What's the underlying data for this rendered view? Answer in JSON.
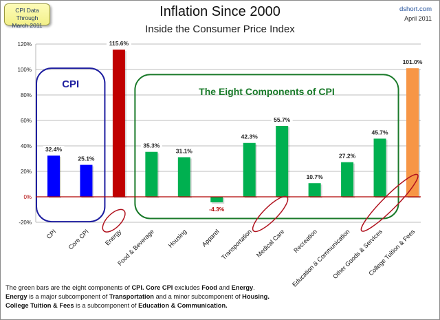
{
  "header": {
    "badge_line1": "CPI Data Through",
    "badge_line2": "March 2011",
    "title": "Inflation Since 2000",
    "subtitle": "Inside the Consumer Price Index",
    "site": "dshort.com",
    "date": "April 2011"
  },
  "chart_data": {
    "type": "bar",
    "title": "Inflation Since 2000",
    "subtitle": "Inside the Consumer Price Index",
    "xlabel": "",
    "ylabel": "",
    "ylim": [
      -20,
      120
    ],
    "yticks": [
      120,
      100,
      80,
      60,
      40,
      20,
      0,
      -20
    ],
    "ytick_labels": [
      "120%",
      "100%",
      "80%",
      "60%",
      "40%",
      "20%",
      "0%",
      "-20%"
    ],
    "grid": true,
    "categories": [
      "CPI",
      "Core CPI",
      "Energy",
      "Food & Beverage",
      "Housing",
      "Apparel",
      "Transportation",
      "Medical Care",
      "Recreation",
      "Education & Communication",
      "Other Goods & Services",
      "College Tuition & Fees"
    ],
    "values": [
      32.4,
      25.1,
      115.6,
      35.3,
      31.1,
      -4.3,
      42.3,
      55.7,
      10.7,
      27.2,
      45.7,
      101.0
    ],
    "value_labels": [
      "32.4%",
      "25.1%",
      "115.6%",
      "35.3%",
      "31.1%",
      "-4.3%",
      "42.3%",
      "55.7%",
      "10.7%",
      "27.2%",
      "45.7%",
      "101.0%"
    ],
    "bar_colors": [
      "#0000ff",
      "#0000ff",
      "#c00000",
      "#00b050",
      "#00b050",
      "#00b050",
      "#00b050",
      "#00b050",
      "#00b050",
      "#00b050",
      "#00b050",
      "#f79646"
    ],
    "circled_categories": [
      "Energy",
      "Medical Care",
      "College Tuition & Fees"
    ],
    "groups": [
      {
        "label": "CPI",
        "from": 0,
        "to": 1,
        "color": "#1f1fa0"
      },
      {
        "label": "The Eight Components of CPI",
        "from": 3,
        "to": 10,
        "color": "#1a7a2a"
      }
    ],
    "zero_line_color": "#b00000"
  },
  "footnote": {
    "line1": [
      {
        "t": "The green bars are the eight components of ",
        "b": false
      },
      {
        "t": "CPI. Core CPI",
        "b": true
      },
      {
        "t": " excludes ",
        "b": false
      },
      {
        "t": "Food",
        "b": true
      },
      {
        "t": " and ",
        "b": false
      },
      {
        "t": "Energy",
        "b": true
      },
      {
        "t": ".",
        "b": false
      }
    ],
    "line2": [
      {
        "t": "Energy",
        "b": true
      },
      {
        "t": " is a  major subcomponent of ",
        "b": false
      },
      {
        "t": "Transportation",
        "b": true
      },
      {
        "t": " and a minor subcomponent of ",
        "b": false
      },
      {
        "t": "Housing.",
        "b": true
      }
    ],
    "line3": [
      {
        "t": "College Tuition & Fees",
        "b": true
      },
      {
        "t": " is a subcomponent of ",
        "b": false
      },
      {
        "t": "Education & Communication.",
        "b": true
      }
    ]
  }
}
